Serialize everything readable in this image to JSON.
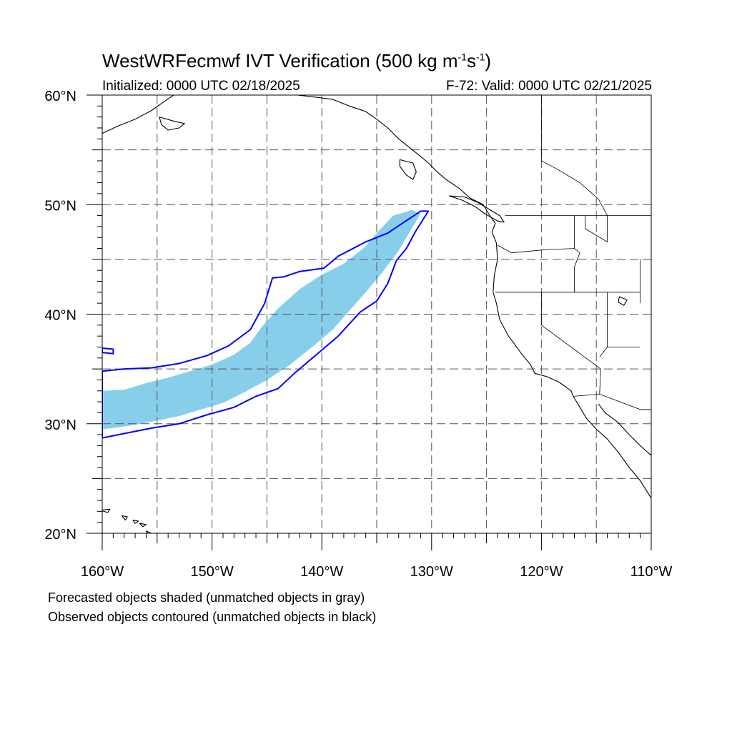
{
  "header": {
    "title_main": "WestWRFecmwf IVT Verification (500 kg m",
    "title_exp1": "-1",
    "title_mid": "s",
    "title_exp2": "-1",
    "title_end": ")",
    "initialized": "Initialized: 0000 UTC 02/18/2025",
    "valid": "F-72: Valid: 0000 UTC 02/21/2025"
  },
  "map": {
    "lon_range": [
      -160,
      -110
    ],
    "lat_range": [
      20,
      60
    ],
    "lat_labels": [
      {
        "lat": 60,
        "label": "60°N"
      },
      {
        "lat": 50,
        "label": "50°N"
      },
      {
        "lat": 40,
        "label": "40°N"
      },
      {
        "lat": 30,
        "label": "30°N"
      },
      {
        "lat": 20,
        "label": "20°N"
      }
    ],
    "lon_labels": [
      {
        "lon": -160,
        "label": "160°W"
      },
      {
        "lon": -150,
        "label": "150°W"
      },
      {
        "lon": -140,
        "label": "140°W"
      },
      {
        "lon": -130,
        "label": "130°W"
      },
      {
        "lon": -120,
        "label": "120°W"
      },
      {
        "lon": -110,
        "label": "110°W"
      }
    ],
    "grid_step_deg": 5,
    "forecast_fill_color": "#87ceeb",
    "observed_contour_color": "#0000ff",
    "forecast_object": [
      [
        -160,
        33.0
      ],
      [
        -158,
        33.1
      ],
      [
        -156,
        33.7
      ],
      [
        -154,
        34.2
      ],
      [
        -152,
        34.8
      ],
      [
        -150,
        35.4
      ],
      [
        -148,
        36.3
      ],
      [
        -146.5,
        37.4
      ],
      [
        -145.5,
        38.8
      ],
      [
        -144,
        40.5
      ],
      [
        -142,
        42.3
      ],
      [
        -140,
        43.6
      ],
      [
        -138,
        44.6
      ],
      [
        -136,
        46.2
      ],
      [
        -135,
        47.4
      ],
      [
        -133.5,
        49.0
      ],
      [
        -131.8,
        49.5
      ],
      [
        -131,
        49.2
      ],
      [
        -132,
        47.5
      ],
      [
        -133,
        45.8
      ],
      [
        -134.5,
        43.8
      ],
      [
        -136,
        42.0
      ],
      [
        -137.5,
        40.3
      ],
      [
        -139,
        38.6
      ],
      [
        -141,
        36.9
      ],
      [
        -143,
        35.3
      ],
      [
        -145,
        34.0
      ],
      [
        -147,
        32.9
      ],
      [
        -149,
        31.9
      ],
      [
        -151,
        31.3
      ],
      [
        -153,
        30.7
      ],
      [
        -155,
        30.3
      ],
      [
        -157,
        29.9
      ],
      [
        -159,
        29.6
      ],
      [
        -160,
        29.5
      ]
    ],
    "observed_object": [
      [
        -160,
        34.8
      ],
      [
        -158,
        35.0
      ],
      [
        -155.5,
        35.1
      ],
      [
        -153,
        35.5
      ],
      [
        -150.5,
        36.2
      ],
      [
        -148.5,
        37.1
      ],
      [
        -146.5,
        38.6
      ],
      [
        -145.2,
        41.0
      ],
      [
        -144.5,
        43.3
      ],
      [
        -143.5,
        43.4
      ],
      [
        -142,
        43.9
      ],
      [
        -139.8,
        44.2
      ],
      [
        -138.5,
        45.3
      ],
      [
        -136,
        46.6
      ],
      [
        -134,
        47.4
      ],
      [
        -132.2,
        48.6
      ],
      [
        -131.0,
        49.4
      ],
      [
        -130.3,
        49.4
      ],
      [
        -131.5,
        47.5
      ],
      [
        -132.3,
        46.0
      ],
      [
        -133.2,
        44.9
      ],
      [
        -134.0,
        42.8
      ],
      [
        -135.0,
        41.2
      ],
      [
        -136.5,
        40.2
      ],
      [
        -138.5,
        38.0
      ],
      [
        -140.5,
        36.3
      ],
      [
        -142.5,
        34.6
      ],
      [
        -144,
        33.2
      ],
      [
        -146,
        32.5
      ],
      [
        -148,
        31.5
      ],
      [
        -150.5,
        30.8
      ],
      [
        -153,
        30.0
      ],
      [
        -155.5,
        29.6
      ],
      [
        -158,
        29.1
      ],
      [
        -160,
        28.7
      ]
    ],
    "observed_small_object": [
      [
        -160,
        36.9
      ],
      [
        -159,
        36.8
      ],
      [
        -159,
        36.4
      ],
      [
        -160,
        36.5
      ]
    ],
    "coastline_north_america": [
      [
        -148,
        60
      ],
      [
        -145,
        60.2
      ],
      [
        -143,
        60.1
      ],
      [
        -140.5,
        59.8
      ],
      [
        -139,
        59.6
      ],
      [
        -137.5,
        59.0
      ],
      [
        -136,
        58.5
      ],
      [
        -135,
        57.8
      ],
      [
        -134,
        57.0
      ],
      [
        -133,
        56.0
      ],
      [
        -132,
        55.2
      ],
      [
        -131,
        54.4
      ],
      [
        -130.3,
        53.8
      ],
      [
        -129.5,
        53.0
      ],
      [
        -128.7,
        52.3
      ],
      [
        -127.5,
        51.5
      ],
      [
        -126.5,
        50.6
      ],
      [
        -125.3,
        50.0
      ],
      [
        -124.7,
        49.0
      ],
      [
        -124.2,
        48.3
      ],
      [
        -124.5,
        47.5
      ],
      [
        -124.1,
        46.5
      ],
      [
        -124.0,
        45.0
      ],
      [
        -124.3,
        43.5
      ],
      [
        -124.4,
        42.0
      ],
      [
        -124.1,
        41.0
      ],
      [
        -123.8,
        39.5
      ],
      [
        -123.0,
        38.0
      ],
      [
        -122.4,
        37.2
      ],
      [
        -121.9,
        36.5
      ],
      [
        -121.0,
        35.4
      ],
      [
        -120.6,
        34.6
      ],
      [
        -119.5,
        34.3
      ],
      [
        -118.4,
        33.8
      ],
      [
        -117.3,
        33.0
      ],
      [
        -117.1,
        32.5
      ],
      [
        -116.5,
        31.5
      ],
      [
        -115.9,
        30.5
      ],
      [
        -115.0,
        29.5
      ],
      [
        -114.0,
        28.6
      ],
      [
        -113.0,
        27.4
      ],
      [
        -112.0,
        26.0
      ],
      [
        -111.0,
        24.8
      ],
      [
        -110.5,
        24.0
      ],
      [
        -110,
        23.2
      ]
    ],
    "coastline_gulf_east": [
      [
        -110,
        27.1
      ],
      [
        -111.0,
        28.0
      ],
      [
        -112.0,
        29.0
      ],
      [
        -113.0,
        30.1
      ],
      [
        -114.2,
        31.0
      ],
      [
        -114.8,
        31.8
      ]
    ],
    "coastline_alaska_peninsula": [
      [
        -160,
        56.5
      ],
      [
        -158.5,
        57.2
      ],
      [
        -157,
        57.8
      ],
      [
        -155.5,
        58.6
      ],
      [
        -154.5,
        59.3
      ],
      [
        -153.5,
        60
      ]
    ],
    "vancouver_island": [
      [
        -128.4,
        50.8
      ],
      [
        -127.2,
        50.4
      ],
      [
        -126.0,
        49.8
      ],
      [
        -125.2,
        49.2
      ],
      [
        -124.0,
        48.5
      ],
      [
        -123.4,
        48.4
      ],
      [
        -123.8,
        49.0
      ],
      [
        -124.8,
        49.6
      ],
      [
        -125.8,
        50.2
      ],
      [
        -127.0,
        50.7
      ],
      [
        -128.4,
        50.8
      ]
    ],
    "haida_gwaii": [
      [
        -132.9,
        54.1
      ],
      [
        -131.7,
        53.8
      ],
      [
        -131.4,
        53.0
      ],
      [
        -131.7,
        52.3
      ],
      [
        -132.3,
        52.7
      ],
      [
        -132.9,
        53.5
      ],
      [
        -132.9,
        54.1
      ]
    ],
    "kodiak": [
      [
        -154.8,
        58.0
      ],
      [
        -153.4,
        57.6
      ],
      [
        -152.5,
        57.4
      ],
      [
        -153.0,
        57.0
      ],
      [
        -154.0,
        56.8
      ],
      [
        -154.6,
        57.3
      ],
      [
        -154.8,
        58.0
      ]
    ],
    "hawaii_islands": [
      [
        [
          -160.2,
          22.1
        ],
        [
          -159.3,
          22.2
        ],
        [
          -159.5,
          21.9
        ],
        [
          -160.2,
          22.1
        ]
      ],
      [
        [
          -158.2,
          21.6
        ],
        [
          -157.7,
          21.5
        ],
        [
          -157.9,
          21.2
        ],
        [
          -158.2,
          21.6
        ]
      ],
      [
        [
          -157.2,
          21.2
        ],
        [
          -156.7,
          21.1
        ],
        [
          -157.0,
          20.9
        ],
        [
          -157.2,
          21.2
        ]
      ],
      [
        [
          -156.6,
          20.9
        ],
        [
          -156.0,
          20.8
        ],
        [
          -156.3,
          20.6
        ],
        [
          -156.6,
          20.9
        ]
      ],
      [
        [
          -156.0,
          20.2
        ],
        [
          -155.0,
          19.8
        ],
        [
          -155.5,
          19.6
        ],
        [
          -156.0,
          20.2
        ]
      ]
    ],
    "borders": [
      [
        [
          -123.3,
          49.0
        ],
        [
          -95,
          49.0
        ]
      ],
      [
        [
          -141,
          60
        ],
        [
          -141,
          69
        ]
      ],
      [
        [
          -124.2,
          42.0
        ],
        [
          -111.0,
          42.0
        ]
      ],
      [
        [
          -120.0,
          42.0
        ],
        [
          -120.0,
          39.0
        ],
        [
          -114.6,
          35.0
        ],
        [
          -114.7,
          32.7
        ]
      ],
      [
        [
          -117.1,
          32.5
        ],
        [
          -114.7,
          32.7
        ],
        [
          -111.0,
          31.3
        ],
        [
          -108.2,
          31.3
        ]
      ],
      [
        [
          -117.0,
          49.0
        ],
        [
          -117.0,
          46.0
        ],
        [
          -116.5,
          45.6
        ],
        [
          -117.0,
          44.3
        ],
        [
          -117.0,
          42.0
        ]
      ],
      [
        [
          -124.0,
          46.3
        ],
        [
          -122.7,
          45.6
        ],
        [
          -119.5,
          45.9
        ],
        [
          -117.0,
          46.0
        ]
      ],
      [
        [
          -114.0,
          42.0
        ],
        [
          -114.0,
          37.0
        ],
        [
          -114.7,
          36.1
        ]
      ],
      [
        [
          -111.0,
          45.0
        ],
        [
          -111.0,
          41.0
        ]
      ],
      [
        [
          -114.0,
          49.0
        ],
        [
          -114.0,
          46.6
        ],
        [
          -116.0,
          47.8
        ],
        [
          -116.0,
          49.0
        ]
      ],
      [
        [
          -111.0,
          37.0
        ],
        [
          -114.0,
          37.0
        ]
      ],
      [
        [
          -120.0,
          60
        ],
        [
          -120.0,
          54.0
        ],
        [
          -118.5,
          53.2
        ],
        [
          -116.5,
          52.0
        ],
        [
          -114.8,
          50.5
        ],
        [
          -114.0,
          49.0
        ]
      ]
    ],
    "lakes": [
      [
        [
          -112.9,
          41.6
        ],
        [
          -112.2,
          41.3
        ],
        [
          -112.5,
          40.8
        ],
        [
          -113.0,
          41.1
        ],
        [
          -112.9,
          41.6
        ]
      ]
    ]
  },
  "footer": {
    "note_forecast": "Forecasted objects shaded (unmatched objects in gray)",
    "note_observed": "Observed objects contoured (unmatched objects in black)"
  }
}
